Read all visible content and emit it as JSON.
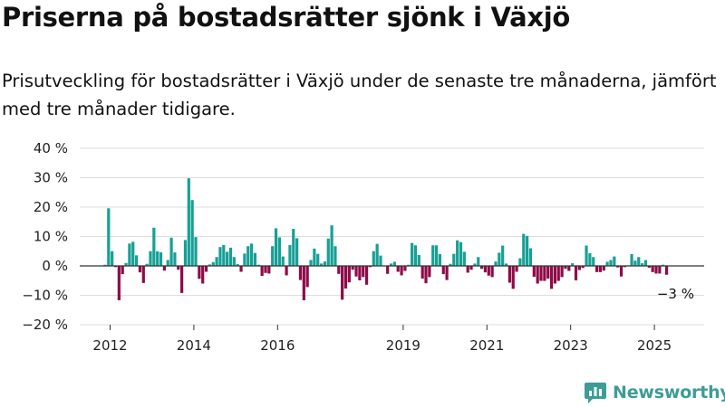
{
  "header": {
    "title": "Priserna på bostadsrätter sjönk i Växjö",
    "subtitle": "Prisutveckling för bostadsrätter i Växjö under de senaste tre månaderna, jämfört med tre månader tidigare."
  },
  "brand": {
    "name": "Newsworthy",
    "color": "#3e9c96",
    "icon": "newsworthy-logo-icon"
  },
  "chart_data": {
    "type": "bar",
    "title": "",
    "xlabel": "",
    "ylabel": "",
    "ylim": [
      -20,
      40
    ],
    "y_ticks": [
      {
        "value": -20,
        "label": "−20 %"
      },
      {
        "value": -10,
        "label": "−10 %"
      },
      {
        "value": 0,
        "label": "0 %"
      },
      {
        "value": 10,
        "label": "10 %"
      },
      {
        "value": 20,
        "label": "20 %"
      },
      {
        "value": 30,
        "label": "30 %"
      },
      {
        "value": 40,
        "label": "40 %"
      }
    ],
    "x_ticks": [
      {
        "value": 2012,
        "label": "2012"
      },
      {
        "value": 2014,
        "label": "2014"
      },
      {
        "value": 2016,
        "label": "2016"
      },
      {
        "value": 2019,
        "label": "2019"
      },
      {
        "value": 2021,
        "label": "2021"
      },
      {
        "value": 2023,
        "label": "2023"
      },
      {
        "value": 2025,
        "label": "2025"
      }
    ],
    "x_start": 2011.88,
    "x_step": 0.0833,
    "grid": true,
    "positive_color": "#16a096",
    "negative_color": "#8e0a48",
    "last_value_label": "−3 %",
    "values": [
      0.4,
      19.6,
      5.0,
      -0.4,
      -11.7,
      -2.8,
      1.0,
      7.6,
      8.2,
      3.6,
      -2.2,
      -5.8,
      0.7,
      5.0,
      13.0,
      5.0,
      4.6,
      -1.6,
      2.0,
      9.6,
      4.6,
      -1.3,
      -9.2,
      8.8,
      29.8,
      22.4,
      9.8,
      -4.4,
      -6.0,
      -2.0,
      0.5,
      1.3,
      3.0,
      6.4,
      7.1,
      4.8,
      6.2,
      3.0,
      0.6,
      -2.0,
      4.2,
      6.7,
      7.6,
      4.4,
      0.4,
      -3.4,
      -2.4,
      -2.6,
      6.7,
      12.8,
      9.7,
      3.2,
      -3.2,
      7.1,
      12.6,
      9.4,
      -4.8,
      -11.7,
      -7.2,
      2.0,
      5.9,
      4.1,
      0.8,
      1.5,
      9.3,
      13.8,
      6.7,
      -2.7,
      -11.5,
      -7.7,
      -5.6,
      -1.3,
      -3.6,
      -4.9,
      -3.8,
      -6.4,
      -0.4,
      5.0,
      7.5,
      3.5,
      0.0,
      -2.7,
      0.8,
      1.4,
      -2.0,
      -3.2,
      -1.7,
      0.4,
      7.8,
      7.0,
      3.7,
      -4.3,
      -5.9,
      -3.8,
      7.0,
      7.0,
      4.0,
      -2.8,
      -4.8,
      0.7,
      4.1,
      8.7,
      8.1,
      4.8,
      -2.3,
      -1.3,
      0.8,
      3.0,
      -1.0,
      -2.2,
      -3.3,
      -3.8,
      1.5,
      4.5,
      6.9,
      0.8,
      -5.7,
      -7.8,
      -2.0,
      2.6,
      10.9,
      10.2,
      6.0,
      -3.7,
      -6.0,
      -5.1,
      -5.1,
      -4.3,
      -7.8,
      -6.0,
      -5.1,
      -3.8,
      -1.0,
      -1.7,
      0.9,
      -4.9,
      -1.4,
      -0.7,
      6.9,
      4.3,
      3.0,
      -2.1,
      -2.1,
      -1.6,
      1.4,
      2.0,
      3.2,
      -0.5,
      -3.6,
      -0.4,
      0.2,
      4.0,
      1.8,
      3.0,
      0.9,
      2.0,
      -0.6,
      -2.1,
      -2.6,
      -2.6,
      0.4,
      -3.0
    ]
  }
}
